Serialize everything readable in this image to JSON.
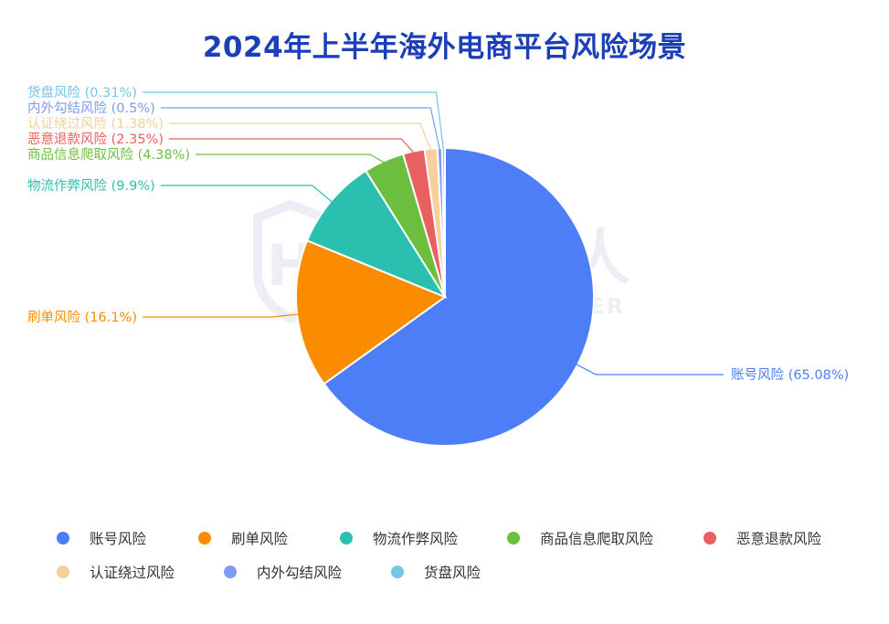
{
  "chart_data": {
    "type": "pie",
    "title": "2024年上半年海外电商平台风险场景",
    "slices": [
      {
        "name": "账号风险",
        "label": "账号风险 (65.08%)",
        "value": 65.08,
        "color": "#4d7ef7"
      },
      {
        "name": "刷单风险",
        "label": "刷单风险 (16.1%)",
        "value": 16.1,
        "color": "#fb8c00"
      },
      {
        "name": "物流作弊风险",
        "label": "物流作弊风险 (9.9%)",
        "value": 9.9,
        "color": "#2bbfb0"
      },
      {
        "name": "商品信息爬取风险",
        "label": "商品信息爬取风险 (4.38%)",
        "value": 4.38,
        "color": "#6cbf3e"
      },
      {
        "name": "恶意退款风险",
        "label": "恶意退款风险 (2.35%)",
        "value": 2.35,
        "color": "#e8605f"
      },
      {
        "name": "认证绕过风险",
        "label": "认证绕过风险 (1.38%)",
        "value": 1.38,
        "color": "#f8cf9c"
      },
      {
        "name": "内外勾结风险",
        "label": "内外勾结风险 (0.5%)",
        "value": 0.5,
        "color": "#7f9bf2"
      },
      {
        "name": "货盘风险",
        "label": "货盘风险 (0.31%)",
        "value": 0.31,
        "color": "#73c6e8"
      }
    ],
    "legend_position": "bottom"
  },
  "watermark": {
    "brand": "威胁猎人",
    "brand_en": "THREAT HUNTER"
  }
}
